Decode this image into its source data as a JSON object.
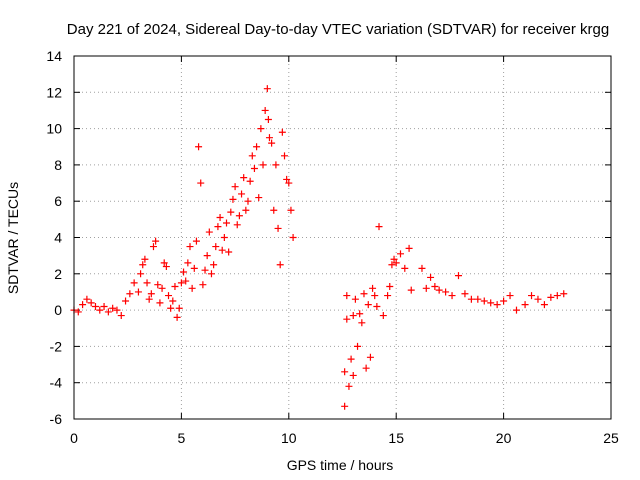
{
  "chart_data": {
    "type": "scatter",
    "title": "Day 221 of 2024, Sidereal Day-to-day VTEC variation (SDTVAR) for receiver krgg",
    "xlabel": "GPS time / hours",
    "ylabel": "SDTVAR / TECUs",
    "xlim": [
      0,
      25
    ],
    "ylim": [
      -6,
      14
    ],
    "xticks": [
      "0",
      "5",
      "10",
      "15",
      "20",
      "25"
    ],
    "yticks": [
      "-6",
      "-4",
      "-2",
      "0",
      "2",
      "4",
      "6",
      "8",
      "10",
      "12",
      "14"
    ],
    "grid": true,
    "marker": "+",
    "color": "#ff0000",
    "series": [
      {
        "name": "SDTVAR",
        "points": [
          [
            0.0,
            0.0
          ],
          [
            0.2,
            -0.1
          ],
          [
            0.4,
            0.3
          ],
          [
            0.6,
            0.6
          ],
          [
            0.8,
            0.4
          ],
          [
            1.0,
            0.2
          ],
          [
            1.2,
            0.0
          ],
          [
            1.4,
            0.2
          ],
          [
            1.6,
            -0.1
          ],
          [
            1.8,
            0.1
          ],
          [
            2.0,
            0.0
          ],
          [
            2.2,
            -0.3
          ],
          [
            2.4,
            0.5
          ],
          [
            2.6,
            0.9
          ],
          [
            2.8,
            1.5
          ],
          [
            3.0,
            1.0
          ],
          [
            3.1,
            2.0
          ],
          [
            3.2,
            2.5
          ],
          [
            3.3,
            2.8
          ],
          [
            3.4,
            1.5
          ],
          [
            3.5,
            0.6
          ],
          [
            3.6,
            0.9
          ],
          [
            3.7,
            3.5
          ],
          [
            3.8,
            3.8
          ],
          [
            3.9,
            1.4
          ],
          [
            4.0,
            0.4
          ],
          [
            4.1,
            1.2
          ],
          [
            4.2,
            2.6
          ],
          [
            4.3,
            2.4
          ],
          [
            4.4,
            0.8
          ],
          [
            4.5,
            0.1
          ],
          [
            4.6,
            0.5
          ],
          [
            4.7,
            1.3
          ],
          [
            4.8,
            -0.4
          ],
          [
            4.9,
            0.1
          ],
          [
            5.0,
            1.5
          ],
          [
            5.1,
            2.1
          ],
          [
            5.2,
            1.6
          ],
          [
            5.3,
            2.6
          ],
          [
            5.4,
            3.5
          ],
          [
            5.5,
            1.2
          ],
          [
            5.6,
            2.3
          ],
          [
            5.7,
            3.8
          ],
          [
            5.8,
            9.0
          ],
          [
            5.9,
            7.0
          ],
          [
            6.0,
            1.4
          ],
          [
            6.1,
            2.2
          ],
          [
            6.2,
            3.0
          ],
          [
            6.3,
            4.3
          ],
          [
            6.4,
            2.0
          ],
          [
            6.5,
            2.5
          ],
          [
            6.6,
            3.5
          ],
          [
            6.7,
            4.6
          ],
          [
            6.8,
            5.1
          ],
          [
            6.9,
            3.3
          ],
          [
            7.0,
            4.0
          ],
          [
            7.1,
            4.8
          ],
          [
            7.2,
            3.2
          ],
          [
            7.3,
            5.4
          ],
          [
            7.4,
            6.1
          ],
          [
            7.5,
            6.8
          ],
          [
            7.6,
            4.7
          ],
          [
            7.7,
            5.2
          ],
          [
            7.8,
            6.4
          ],
          [
            7.9,
            7.3
          ],
          [
            8.0,
            5.5
          ],
          [
            8.1,
            6.0
          ],
          [
            8.2,
            7.1
          ],
          [
            8.3,
            8.5
          ],
          [
            8.4,
            7.8
          ],
          [
            8.5,
            9.0
          ],
          [
            8.6,
            6.2
          ],
          [
            8.7,
            10.0
          ],
          [
            8.8,
            8.0
          ],
          [
            8.9,
            11.0
          ],
          [
            9.0,
            12.2
          ],
          [
            9.05,
            10.5
          ],
          [
            9.1,
            9.5
          ],
          [
            9.2,
            9.2
          ],
          [
            9.3,
            5.5
          ],
          [
            9.4,
            8.0
          ],
          [
            9.5,
            4.5
          ],
          [
            9.6,
            2.5
          ],
          [
            9.7,
            9.8
          ],
          [
            9.8,
            8.5
          ],
          [
            9.9,
            7.2
          ],
          [
            10.0,
            7.0
          ],
          [
            10.1,
            5.5
          ],
          [
            10.2,
            4.0
          ],
          [
            12.6,
            -3.4
          ],
          [
            12.6,
            -5.3
          ],
          [
            12.7,
            -0.5
          ],
          [
            12.7,
            0.8
          ],
          [
            12.8,
            -4.2
          ],
          [
            12.9,
            -2.7
          ],
          [
            13.0,
            -0.3
          ],
          [
            13.0,
            -3.6
          ],
          [
            13.1,
            0.6
          ],
          [
            13.2,
            -2.0
          ],
          [
            13.3,
            -0.2
          ],
          [
            13.4,
            -0.7
          ],
          [
            13.5,
            0.9
          ],
          [
            13.6,
            -3.2
          ],
          [
            13.7,
            0.3
          ],
          [
            13.8,
            -2.6
          ],
          [
            13.9,
            1.2
          ],
          [
            14.0,
            0.8
          ],
          [
            14.1,
            0.2
          ],
          [
            14.2,
            4.6
          ],
          [
            14.4,
            -0.3
          ],
          [
            14.6,
            0.8
          ],
          [
            14.7,
            1.3
          ],
          [
            14.8,
            2.5
          ],
          [
            14.9,
            2.8
          ],
          [
            15.0,
            2.6
          ],
          [
            15.2,
            3.1
          ],
          [
            15.4,
            2.3
          ],
          [
            15.6,
            3.4
          ],
          [
            15.7,
            1.1
          ],
          [
            16.2,
            2.3
          ],
          [
            16.4,
            1.2
          ],
          [
            16.6,
            1.8
          ],
          [
            16.8,
            1.3
          ],
          [
            17.0,
            1.1
          ],
          [
            17.3,
            1.0
          ],
          [
            17.6,
            0.8
          ],
          [
            17.9,
            1.9
          ],
          [
            18.2,
            0.9
          ],
          [
            18.5,
            0.6
          ],
          [
            18.8,
            0.6
          ],
          [
            19.1,
            0.5
          ],
          [
            19.4,
            0.4
          ],
          [
            19.7,
            0.3
          ],
          [
            20.0,
            0.5
          ],
          [
            20.3,
            0.8
          ],
          [
            20.6,
            0.0
          ],
          [
            21.0,
            0.3
          ],
          [
            21.3,
            0.8
          ],
          [
            21.6,
            0.6
          ],
          [
            21.9,
            0.3
          ],
          [
            22.2,
            0.7
          ],
          [
            22.5,
            0.8
          ],
          [
            22.8,
            0.9
          ]
        ]
      }
    ]
  }
}
